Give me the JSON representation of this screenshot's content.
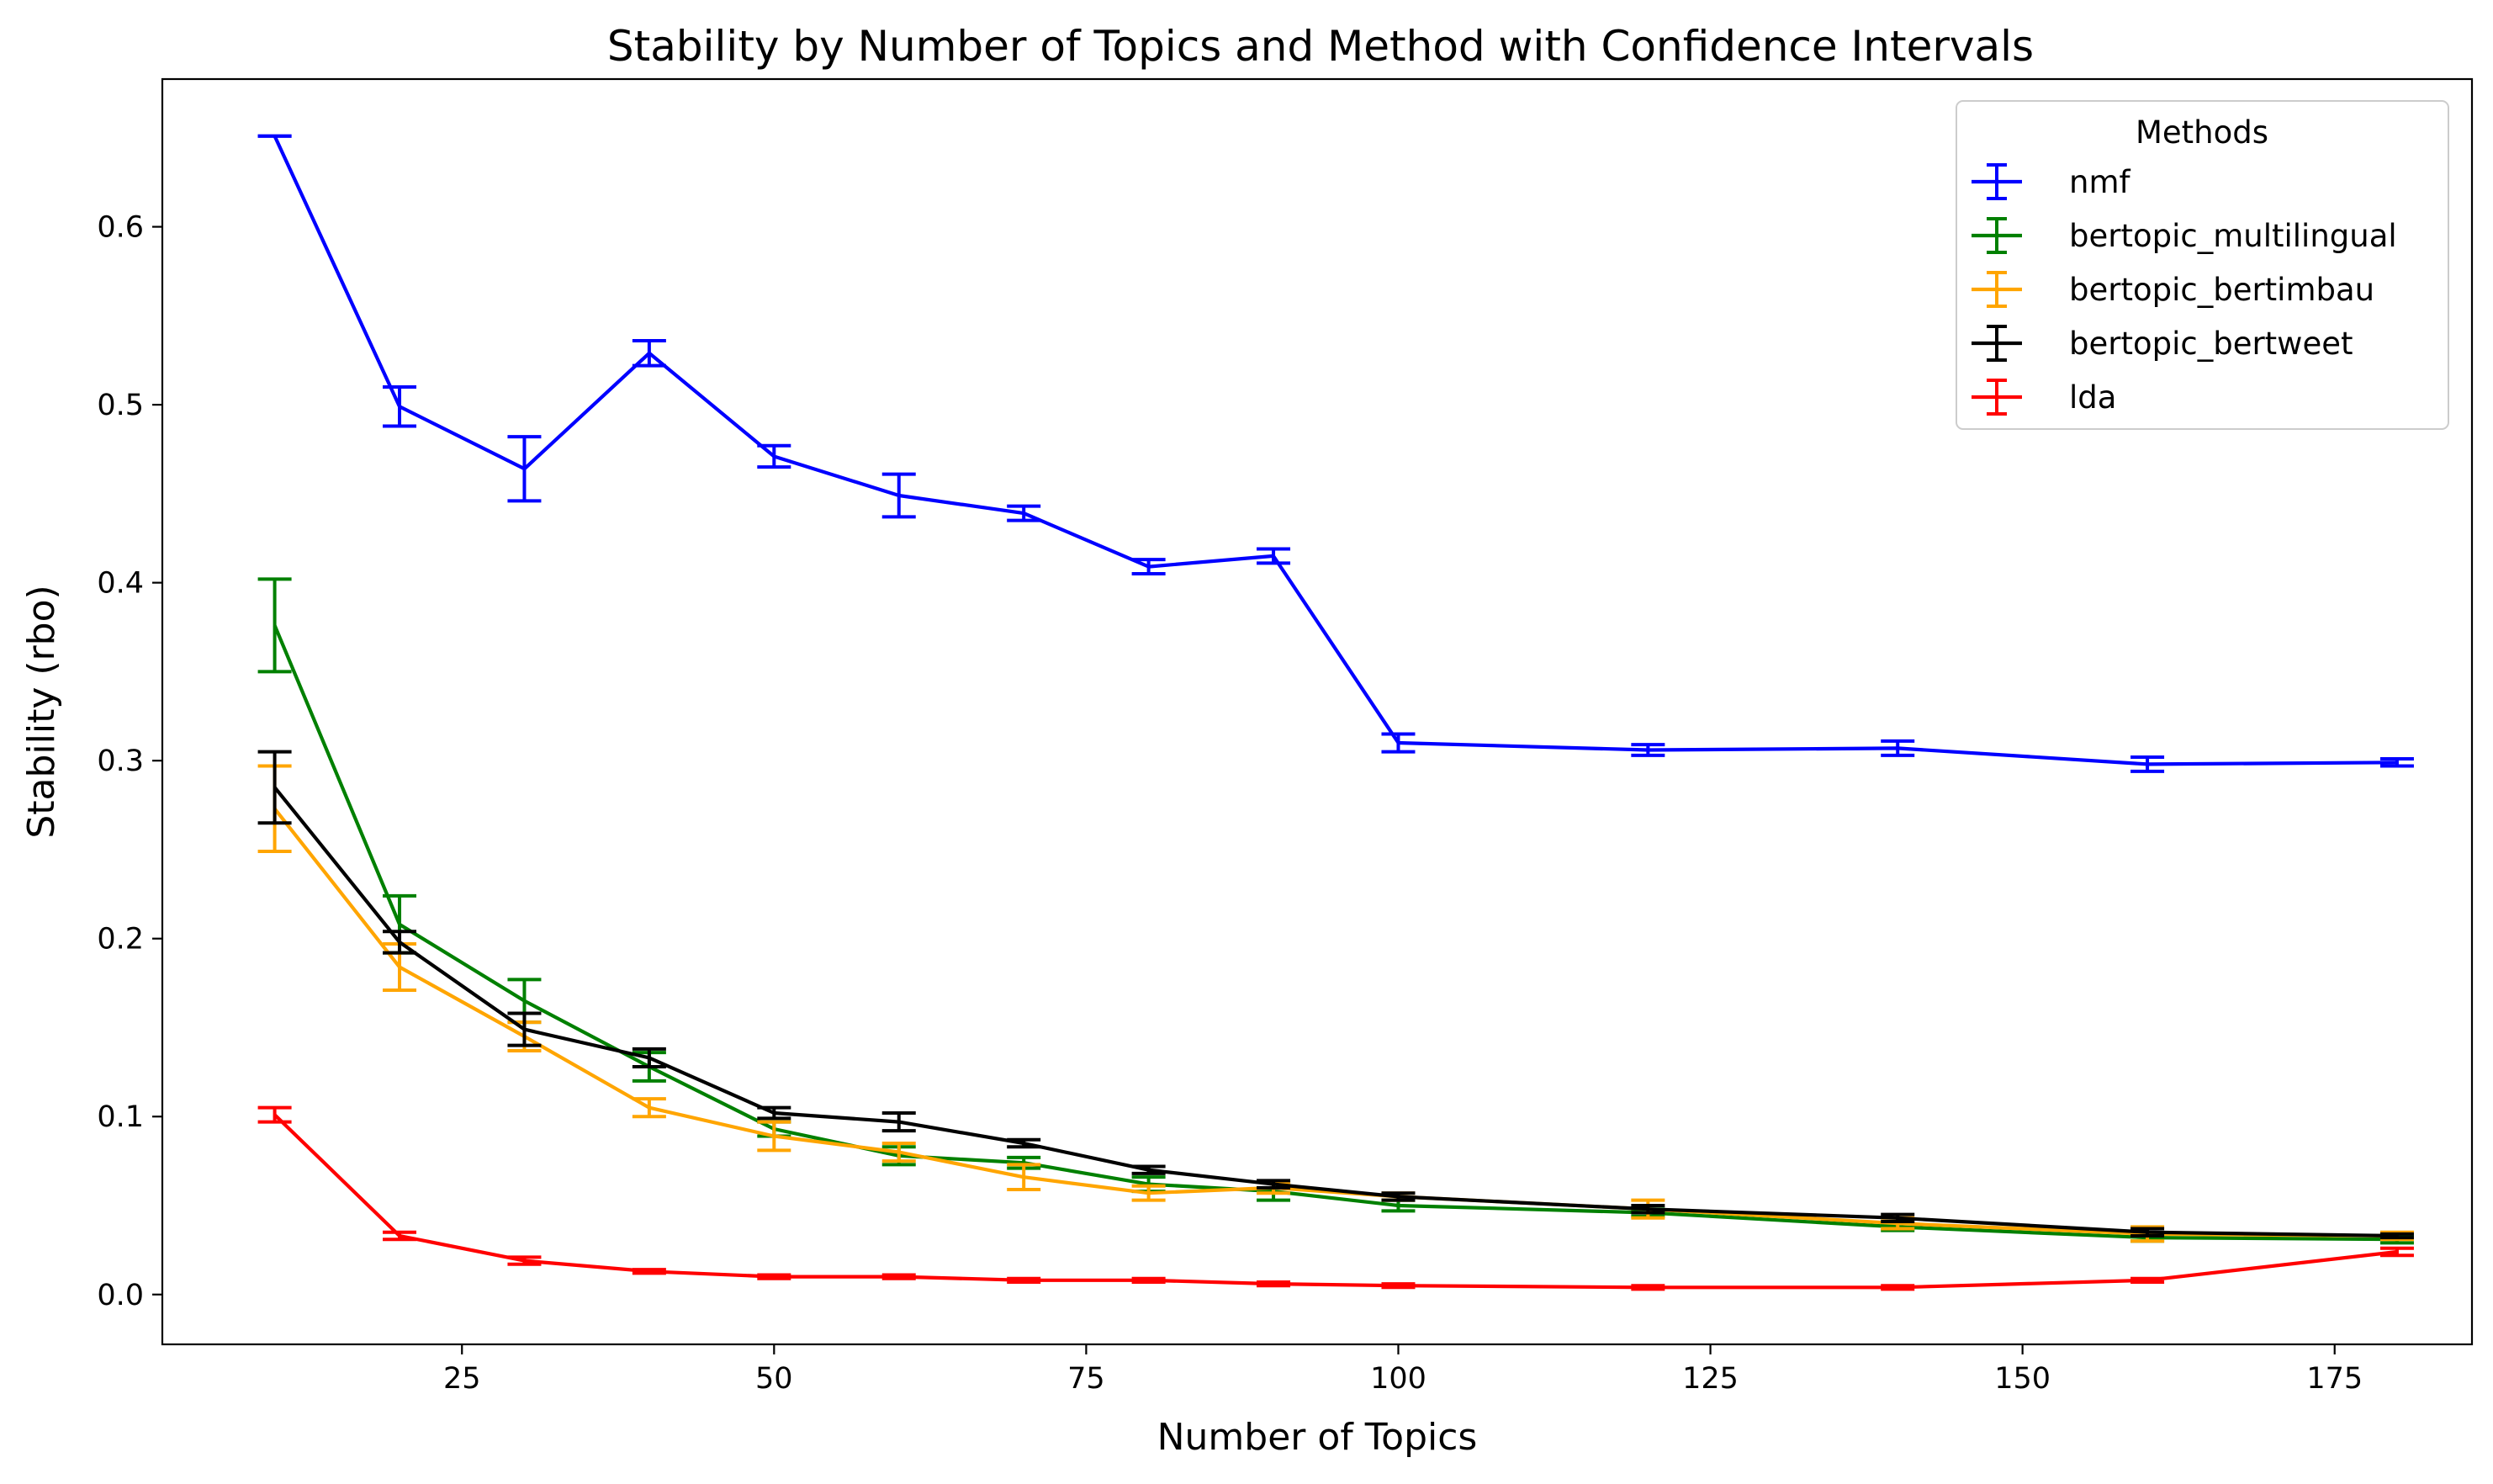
{
  "chart_data": {
    "type": "line",
    "title": "Stability by Number of Topics and Method with Confidence Intervals",
    "xlabel": "Number of Topics",
    "ylabel": "Stability (rbo)",
    "xlim": [
      1,
      186
    ],
    "ylim": [
      -0.028,
      0.683
    ],
    "xticks": [
      25,
      50,
      75,
      100,
      125,
      150,
      175
    ],
    "yticks": [
      0.0,
      0.1,
      0.2,
      0.3,
      0.4,
      0.5,
      0.6
    ],
    "ytick_labels": [
      "0.0",
      "0.1",
      "0.2",
      "0.3",
      "0.4",
      "0.5",
      "0.6"
    ],
    "grid": false,
    "legend": {
      "title": "Methods",
      "position": "top-right"
    },
    "x": [
      10,
      20,
      30,
      40,
      50,
      60,
      70,
      80,
      90,
      100,
      120,
      140,
      160,
      180
    ],
    "series": [
      {
        "name": "nmf",
        "color": "#0000ff",
        "values": [
          0.651,
          0.499,
          0.464,
          0.529,
          0.471,
          0.449,
          0.439,
          0.409,
          0.415,
          0.31,
          0.306,
          0.307,
          0.298,
          0.299
        ],
        "err": [
          0.0,
          0.011,
          0.018,
          0.007,
          0.006,
          0.012,
          0.004,
          0.004,
          0.004,
          0.005,
          0.003,
          0.004,
          0.004,
          0.002
        ]
      },
      {
        "name": "bertopic_multilingual",
        "color": "#008000",
        "values": [
          0.376,
          0.208,
          0.165,
          0.128,
          0.093,
          0.078,
          0.074,
          0.062,
          0.058,
          0.05,
          0.046,
          0.038,
          0.032,
          0.031
        ],
        "err": [
          0.026,
          0.016,
          0.012,
          0.008,
          0.004,
          0.005,
          0.003,
          0.004,
          0.005,
          0.003,
          0.002,
          0.002,
          0.002,
          0.002
        ]
      },
      {
        "name": "bertopic_bertimbau",
        "color": "#ffa500",
        "values": [
          0.273,
          0.184,
          0.145,
          0.105,
          0.089,
          0.08,
          0.066,
          0.057,
          0.06,
          0.055,
          0.048,
          0.04,
          0.034,
          0.033
        ],
        "err": [
          0.024,
          0.013,
          0.008,
          0.005,
          0.008,
          0.005,
          0.007,
          0.004,
          0.003,
          0.002,
          0.005,
          0.003,
          0.004,
          0.002
        ]
      },
      {
        "name": "bertopic_bertweet",
        "color": "#000000",
        "values": [
          0.285,
          0.198,
          0.149,
          0.133,
          0.102,
          0.097,
          0.085,
          0.07,
          0.062,
          0.055,
          0.048,
          0.043,
          0.035,
          0.033
        ],
        "err": [
          0.02,
          0.006,
          0.009,
          0.005,
          0.003,
          0.005,
          0.002,
          0.002,
          0.002,
          0.002,
          0.002,
          0.002,
          0.002,
          0.001
        ]
      },
      {
        "name": "lda",
        "color": "#ff0000",
        "values": [
          0.101,
          0.033,
          0.019,
          0.013,
          0.01,
          0.01,
          0.008,
          0.008,
          0.006,
          0.005,
          0.004,
          0.004,
          0.008,
          0.024
        ],
        "err": [
          0.004,
          0.002,
          0.002,
          0.001,
          0.001,
          0.001,
          0.001,
          0.001,
          0.001,
          0.001,
          0.001,
          0.001,
          0.001,
          0.002
        ]
      }
    ]
  }
}
